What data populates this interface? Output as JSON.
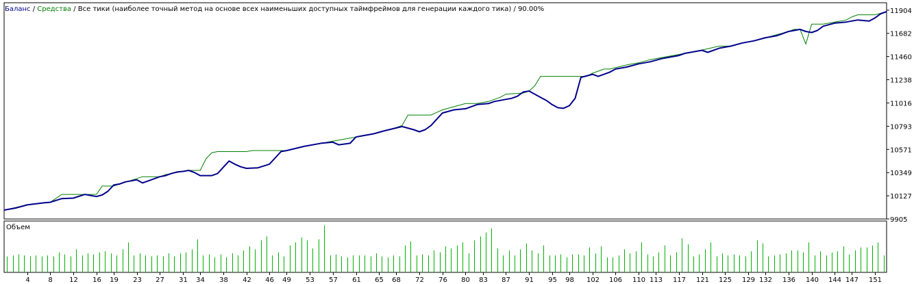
{
  "header": {
    "balance_label": "Баланс",
    "separator": " / ",
    "equity_label": "Средства",
    "description": " / Все тики (наиболее точный метод на основе всех наименьших доступных таймфреймов для генерации каждого тика) / 90.00%"
  },
  "volume_pane": {
    "label": "Объем"
  },
  "colors": {
    "balance": "#00008B",
    "equity": "#008000",
    "volume": "#00B000",
    "frame": "#000000",
    "grid": "#C8C8C8"
  },
  "chart_data": {
    "type": "line",
    "ylim": [
      9905,
      11975
    ],
    "yticks": [
      11904,
      11682,
      11460,
      11238,
      11016,
      10793,
      10571,
      10349,
      10127,
      9905
    ],
    "xlim": [
      0,
      153
    ],
    "xticks": [
      4,
      8,
      12,
      16,
      19,
      23,
      27,
      31,
      34,
      38,
      42,
      46,
      49,
      53,
      57,
      61,
      65,
      68,
      72,
      76,
      80,
      83,
      87,
      91,
      95,
      98,
      102,
      106,
      110,
      113,
      117,
      121,
      125,
      129,
      132,
      136,
      140,
      144,
      147,
      151
    ],
    "series": [
      {
        "name": "Баланс",
        "x": [
          0,
          2,
          4,
          7,
          8,
          10,
          12,
          14,
          16,
          17,
          18,
          19,
          20,
          21,
          22,
          23,
          24,
          25,
          27,
          28,
          29,
          30,
          31,
          32,
          33,
          34,
          36,
          37,
          39,
          40,
          41,
          42,
          44,
          46,
          48,
          49,
          52,
          55,
          57,
          58,
          60,
          61,
          62,
          64,
          66,
          69,
          71,
          72,
          73,
          74,
          76,
          78,
          80,
          82,
          84,
          85,
          87,
          88,
          89,
          90,
          91,
          92,
          93,
          94,
          95,
          96,
          97,
          98,
          99,
          100,
          102,
          103,
          104,
          105,
          106,
          108,
          110,
          112,
          114,
          116,
          117,
          118,
          120,
          121,
          122,
          124,
          126,
          128,
          130,
          132,
          134,
          136,
          137,
          138,
          139,
          140,
          141,
          142,
          144,
          146,
          147,
          148,
          150,
          151,
          152,
          153
        ],
        "y": [
          9990,
          10010,
          10040,
          10060,
          10065,
          10100,
          10105,
          10140,
          10120,
          10135,
          10170,
          10230,
          10240,
          10260,
          10270,
          10280,
          10250,
          10270,
          10310,
          10320,
          10340,
          10355,
          10360,
          10370,
          10350,
          10320,
          10320,
          10340,
          10460,
          10430,
          10405,
          10390,
          10395,
          10430,
          10550,
          10560,
          10600,
          10630,
          10640,
          10615,
          10630,
          10690,
          10700,
          10720,
          10750,
          10790,
          10760,
          10740,
          10760,
          10800,
          10920,
          10950,
          10960,
          11000,
          11010,
          11030,
          11050,
          11060,
          11080,
          11120,
          11130,
          11100,
          11070,
          11040,
          11000,
          10970,
          10965,
          10990,
          11060,
          11260,
          11290,
          11270,
          11290,
          11310,
          11340,
          11360,
          11390,
          11410,
          11440,
          11460,
          11470,
          11490,
          11510,
          11520,
          11500,
          11540,
          11560,
          11590,
          11610,
          11640,
          11660,
          11700,
          11710,
          11720,
          11700,
          11690,
          11710,
          11750,
          11780,
          11790,
          11800,
          11810,
          11800,
          11830,
          11870,
          11890
        ]
      },
      {
        "name": "Средства",
        "x": [
          0,
          4,
          8,
          10,
          12,
          16,
          17,
          19,
          24,
          25,
          27,
          28,
          32,
          34,
          35,
          36,
          37,
          38,
          42,
          43,
          46,
          48,
          49,
          52,
          55,
          57,
          58,
          60,
          61,
          62,
          64,
          66,
          68,
          69,
          70,
          74,
          76,
          78,
          80,
          82,
          84,
          86,
          87,
          90,
          91,
          92,
          93,
          94,
          95,
          96,
          97,
          98,
          99,
          100,
          101,
          102,
          103,
          104,
          105,
          108,
          110,
          112,
          114,
          116,
          118,
          120,
          124,
          126,
          128,
          130,
          132,
          134,
          136,
          137,
          138,
          139,
          140,
          141,
          142,
          144,
          146,
          147,
          148,
          150,
          151,
          153
        ],
        "y": [
          9990,
          10040,
          10065,
          10140,
          10140,
          10140,
          10220,
          10220,
          10310,
          10310,
          10310,
          10330,
          10370,
          10370,
          10480,
          10540,
          10550,
          10550,
          10550,
          10560,
          10560,
          10560,
          10560,
          10600,
          10630,
          10650,
          10660,
          10680,
          10690,
          10700,
          10720,
          10750,
          10780,
          10800,
          10900,
          10900,
          10950,
          10980,
          11010,
          11010,
          11030,
          11070,
          11100,
          11110,
          11130,
          11180,
          11270,
          11270,
          11270,
          11270,
          11270,
          11270,
          11270,
          11270,
          11270,
          11300,
          11320,
          11340,
          11340,
          11380,
          11400,
          11430,
          11450,
          11470,
          11490,
          11510,
          11560,
          11560,
          11590,
          11610,
          11640,
          11670,
          11700,
          11720,
          11720,
          11580,
          11770,
          11770,
          11770,
          11790,
          11810,
          11840,
          11860,
          11860,
          11860,
          11890
        ]
      }
    ],
    "volume": {
      "label": "Объем",
      "x": [
        0,
        1,
        2,
        3,
        4,
        5,
        6,
        7,
        8,
        9,
        10,
        11,
        12,
        13,
        14,
        15,
        16,
        17,
        18,
        19,
        20,
        21,
        22,
        23,
        24,
        25,
        26,
        27,
        28,
        29,
        30,
        31,
        32,
        33,
        34,
        35,
        36,
        37,
        38,
        39,
        40,
        41,
        42,
        43,
        44,
        45,
        46,
        47,
        48,
        49,
        50,
        51,
        52,
        53,
        54,
        55,
        56,
        57,
        58,
        59,
        60,
        61,
        62,
        63,
        64,
        65,
        66,
        67,
        68,
        69,
        70,
        71,
        72,
        73,
        74,
        75,
        76,
        77,
        78,
        79,
        80,
        81,
        82,
        83,
        84,
        85,
        86,
        87,
        88,
        89,
        90,
        91,
        92,
        93,
        94,
        95,
        96,
        97,
        98,
        99,
        100,
        101,
        102,
        103,
        104,
        105,
        106,
        107,
        108,
        109,
        110,
        111,
        112,
        113,
        114,
        115,
        116,
        117,
        118,
        119,
        120,
        121,
        122,
        123,
        124,
        125,
        126,
        127,
        128,
        129,
        130,
        131,
        132,
        133,
        134,
        135,
        136,
        137,
        138,
        139,
        140,
        141,
        142,
        143,
        144,
        145,
        146,
        147,
        148,
        149,
        150,
        151,
        152
      ],
      "values": [
        16,
        17,
        18,
        17,
        16,
        17,
        16,
        17,
        16,
        20,
        18,
        16,
        23,
        17,
        19,
        18,
        20,
        21,
        19,
        17,
        23,
        30,
        17,
        19,
        17,
        16,
        17,
        16,
        19,
        16,
        19,
        20,
        23,
        33,
        17,
        18,
        15,
        18,
        15,
        19,
        17,
        22,
        26,
        23,
        32,
        36,
        17,
        20,
        16,
        27,
        30,
        35,
        32,
        24,
        33,
        47,
        17,
        18,
        16,
        15,
        17,
        17,
        17,
        16,
        19,
        16,
        15,
        17,
        16,
        27,
        31,
        17,
        18,
        17,
        22,
        20,
        26,
        24,
        27,
        30,
        19,
        32,
        36,
        40,
        44,
        24,
        17,
        22,
        17,
        23,
        29,
        22,
        19,
        27,
        17,
        17,
        18,
        15,
        18,
        18,
        17,
        25,
        19,
        26,
        15,
        15,
        17,
        23,
        19,
        21,
        30,
        18,
        16,
        20,
        27,
        17,
        20,
        34,
        28,
        16,
        18,
        23,
        30,
        16,
        19,
        17,
        18,
        17,
        16,
        21,
        32,
        29,
        16,
        17,
        18,
        19,
        22,
        22,
        20,
        30,
        17,
        21,
        17,
        20,
        21,
        26,
        18,
        22,
        25,
        25,
        27,
        30,
        17
      ]
    }
  }
}
